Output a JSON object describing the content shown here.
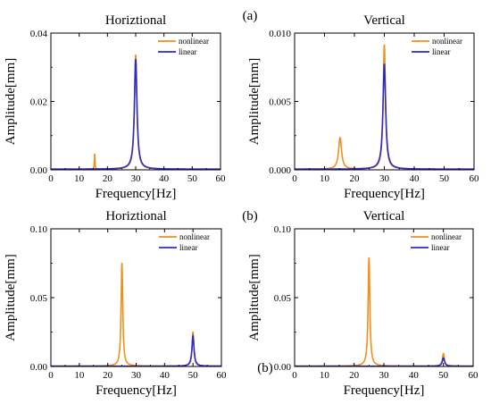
{
  "labels": {
    "row_a": "(a)",
    "row_b": "(b)",
    "row_b2": "(b)"
  },
  "colors": {
    "nonlinear": "#F28E1C",
    "linear": "#2C2BC8"
  },
  "chart_data": [
    {
      "type": "line",
      "title": "Horiztional",
      "xlabel": "Frequency[Hz]",
      "ylabel": "Amplitude[mm]",
      "xlim": [
        0,
        60
      ],
      "ylim": [
        0,
        0.04
      ],
      "xticks": [
        "0",
        "10",
        "20",
        "30",
        "40",
        "50",
        "60"
      ],
      "yticks": [
        "0.00",
        "0.02",
        "0.04"
      ],
      "grid": false,
      "legend_position": "top-right",
      "series": [
        {
          "name": "nonlinear",
          "peaks": [
            [
              15.5,
              0.0045,
              0.12
            ],
            [
              30.0,
              0.0335,
              0.5
            ]
          ],
          "base": 0.0002
        },
        {
          "name": "linear",
          "peaks": [
            [
              30.0,
              0.0322,
              0.55
            ]
          ],
          "base": 0.0002
        }
      ]
    },
    {
      "type": "line",
      "title": "Vertical",
      "xlabel": "Frequency[Hz]",
      "ylabel": "Amplitude[mm]",
      "xlim": [
        0,
        60
      ],
      "ylim": [
        0,
        0.01
      ],
      "xticks": [
        "0",
        "10",
        "20",
        "30",
        "40",
        "50",
        "60"
      ],
      "yticks": [
        "0.000",
        "0.005",
        "0.010"
      ],
      "grid": false,
      "legend_position": "top-right",
      "series": [
        {
          "name": "nonlinear",
          "peaks": [
            [
              15.2,
              0.0023,
              0.6
            ],
            [
              30.0,
              0.0091,
              0.45
            ]
          ],
          "base": 5e-05
        },
        {
          "name": "linear",
          "peaks": [
            [
              30.0,
              0.0077,
              0.55
            ]
          ],
          "base": 5e-05
        }
      ]
    },
    {
      "type": "line",
      "title": "Horiztional",
      "xlabel": "Frequency[Hz]",
      "ylabel": "Amplitude[mm]",
      "xlim": [
        0,
        60
      ],
      "ylim": [
        0,
        0.1
      ],
      "xticks": [
        "0",
        "10",
        "20",
        "30",
        "40",
        "50",
        "60"
      ],
      "yticks": [
        "0.00",
        "0.05",
        "0.10"
      ],
      "grid": false,
      "legend_position": "top-right",
      "series": [
        {
          "name": "nonlinear",
          "peaks": [
            [
              25.0,
              0.075,
              0.35
            ],
            [
              50.0,
              0.025,
              0.35
            ]
          ],
          "base": 0.0003
        },
        {
          "name": "linear",
          "peaks": [
            [
              50.0,
              0.022,
              0.45
            ]
          ],
          "base": 0.0002
        }
      ]
    },
    {
      "type": "line",
      "title": "Vertical",
      "xlabel": "Frequency[Hz]",
      "ylabel": "Amplitude[mm]",
      "xlim": [
        0,
        60
      ],
      "ylim": [
        0,
        0.1
      ],
      "xticks": [
        "0",
        "10",
        "20",
        "30",
        "40",
        "50",
        "60"
      ],
      "yticks": [
        "0.00",
        "0.05",
        "0.10"
      ],
      "grid": false,
      "legend_position": "top-right",
      "series": [
        {
          "name": "nonlinear",
          "peaks": [
            [
              25.0,
              0.079,
              0.35
            ],
            [
              50.0,
              0.009,
              0.4
            ]
          ],
          "base": 0.0003
        },
        {
          "name": "linear",
          "peaks": [
            [
              50.0,
              0.006,
              0.45
            ]
          ],
          "base": 0.0002
        }
      ]
    }
  ]
}
